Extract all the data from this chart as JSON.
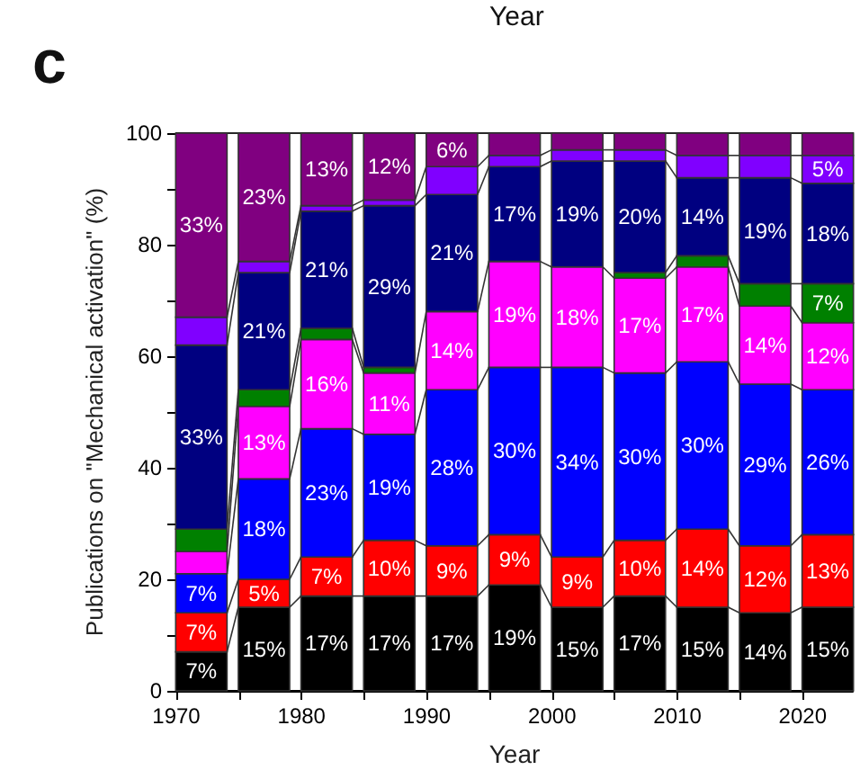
{
  "chart_data": {
    "type": "bar",
    "stacked": true,
    "xlabel": "Year",
    "ylabel": "Publications on \"Mechanical activation\" (%)",
    "annotations": [
      "c",
      "Year"
    ],
    "x": [
      1972,
      1977,
      1982,
      1987,
      1992,
      1997,
      2002,
      2007,
      2012,
      2017,
      2022
    ],
    "xlim": [
      1970,
      2024
    ],
    "xticks": [
      1970,
      {
        "value": 1975,
        "label": null
      },
      1980,
      {
        "value": 1985,
        "label": null
      },
      1990,
      {
        "value": 1995,
        "label": null
      },
      2000,
      {
        "value": 2005,
        "label": null
      },
      2010,
      {
        "value": 2015,
        "label": null
      },
      2020
    ],
    "ylim": [
      0,
      100
    ],
    "yticks": [
      0,
      {
        "value": 10,
        "label": null
      },
      20,
      {
        "value": 30,
        "label": null
      },
      40,
      {
        "value": 50,
        "label": null
      },
      60,
      {
        "value": 70,
        "label": null
      },
      80,
      {
        "value": 90,
        "label": null
      },
      100
    ],
    "series": [
      {
        "color": "#000000",
        "values": [
          7,
          15,
          17,
          17,
          17,
          19,
          15,
          17,
          15,
          14,
          15
        ],
        "value_labels": [
          "7%",
          "15%",
          "17%",
          "17%",
          "17%",
          "19%",
          "15%",
          "17%",
          "15%",
          "14%",
          "15%"
        ]
      },
      {
        "color": "#ff0000",
        "values": [
          7,
          5,
          7,
          10,
          9,
          9,
          9,
          10,
          14,
          12,
          13
        ],
        "value_labels": [
          "7%",
          "5%",
          "7%",
          "10%",
          "9%",
          "9%",
          "9%",
          "10%",
          "14%",
          "12%",
          "13%"
        ]
      },
      {
        "color": "#0000ff",
        "values": [
          7,
          18,
          23,
          19,
          28,
          30,
          34,
          30,
          30,
          29,
          26
        ],
        "value_labels": [
          "7%",
          "18%",
          "23%",
          "19%",
          "28%",
          "30%",
          "34%",
          "30%",
          "30%",
          "29%",
          "26%"
        ]
      },
      {
        "color": "#ff00ff",
        "values": [
          4,
          13,
          16,
          11,
          14,
          19,
          18,
          17,
          17,
          14,
          12
        ],
        "value_labels": [
          null,
          "13%",
          "16%",
          "11%",
          "14%",
          "19%",
          "18%",
          "17%",
          "17%",
          "14%",
          "12%"
        ]
      },
      {
        "color": "#008000",
        "values": [
          4,
          3,
          2,
          1,
          null,
          null,
          null,
          1,
          2,
          4,
          7
        ],
        "value_labels": [
          null,
          null,
          null,
          null,
          null,
          null,
          null,
          null,
          null,
          null,
          "7%"
        ]
      },
      {
        "color": "#000080",
        "values": [
          33,
          21,
          21,
          29,
          21,
          17,
          19,
          20,
          14,
          19,
          18
        ],
        "value_labels": [
          "33%",
          "21%",
          "21%",
          "29%",
          "21%",
          "17%",
          "19%",
          "20%",
          "14%",
          "19%",
          "18%"
        ]
      },
      {
        "color": "#8000ff",
        "values": [
          5,
          2,
          1,
          1,
          5,
          2,
          2,
          2,
          4,
          4,
          5
        ],
        "value_labels": [
          null,
          null,
          null,
          null,
          null,
          null,
          null,
          null,
          null,
          null,
          "5%"
        ]
      },
      {
        "color": "#800080",
        "values": [
          33,
          23,
          13,
          12,
          6,
          4,
          3,
          3,
          4,
          4,
          4
        ],
        "value_labels": [
          "33%",
          "23%",
          "13%",
          "12%",
          "6%",
          null,
          null,
          null,
          null,
          null,
          null
        ]
      }
    ]
  }
}
